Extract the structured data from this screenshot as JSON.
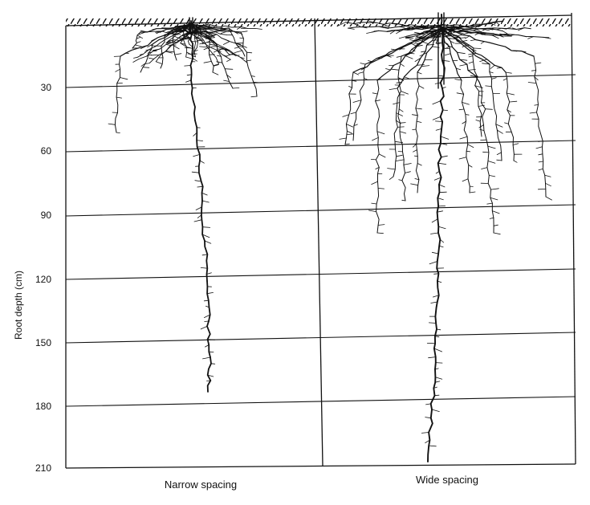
{
  "diagram": {
    "y_axis_label": "Root depth (cm)",
    "depth_ticks": [
      "30",
      "60",
      "90",
      "120",
      "150",
      "180",
      "210"
    ],
    "panels": [
      {
        "caption": "Narrow spacing",
        "max_root_depth_cm": 175
      },
      {
        "caption": "Wide spacing",
        "max_root_depth_cm": 210
      }
    ],
    "ink_color": "#111111"
  }
}
